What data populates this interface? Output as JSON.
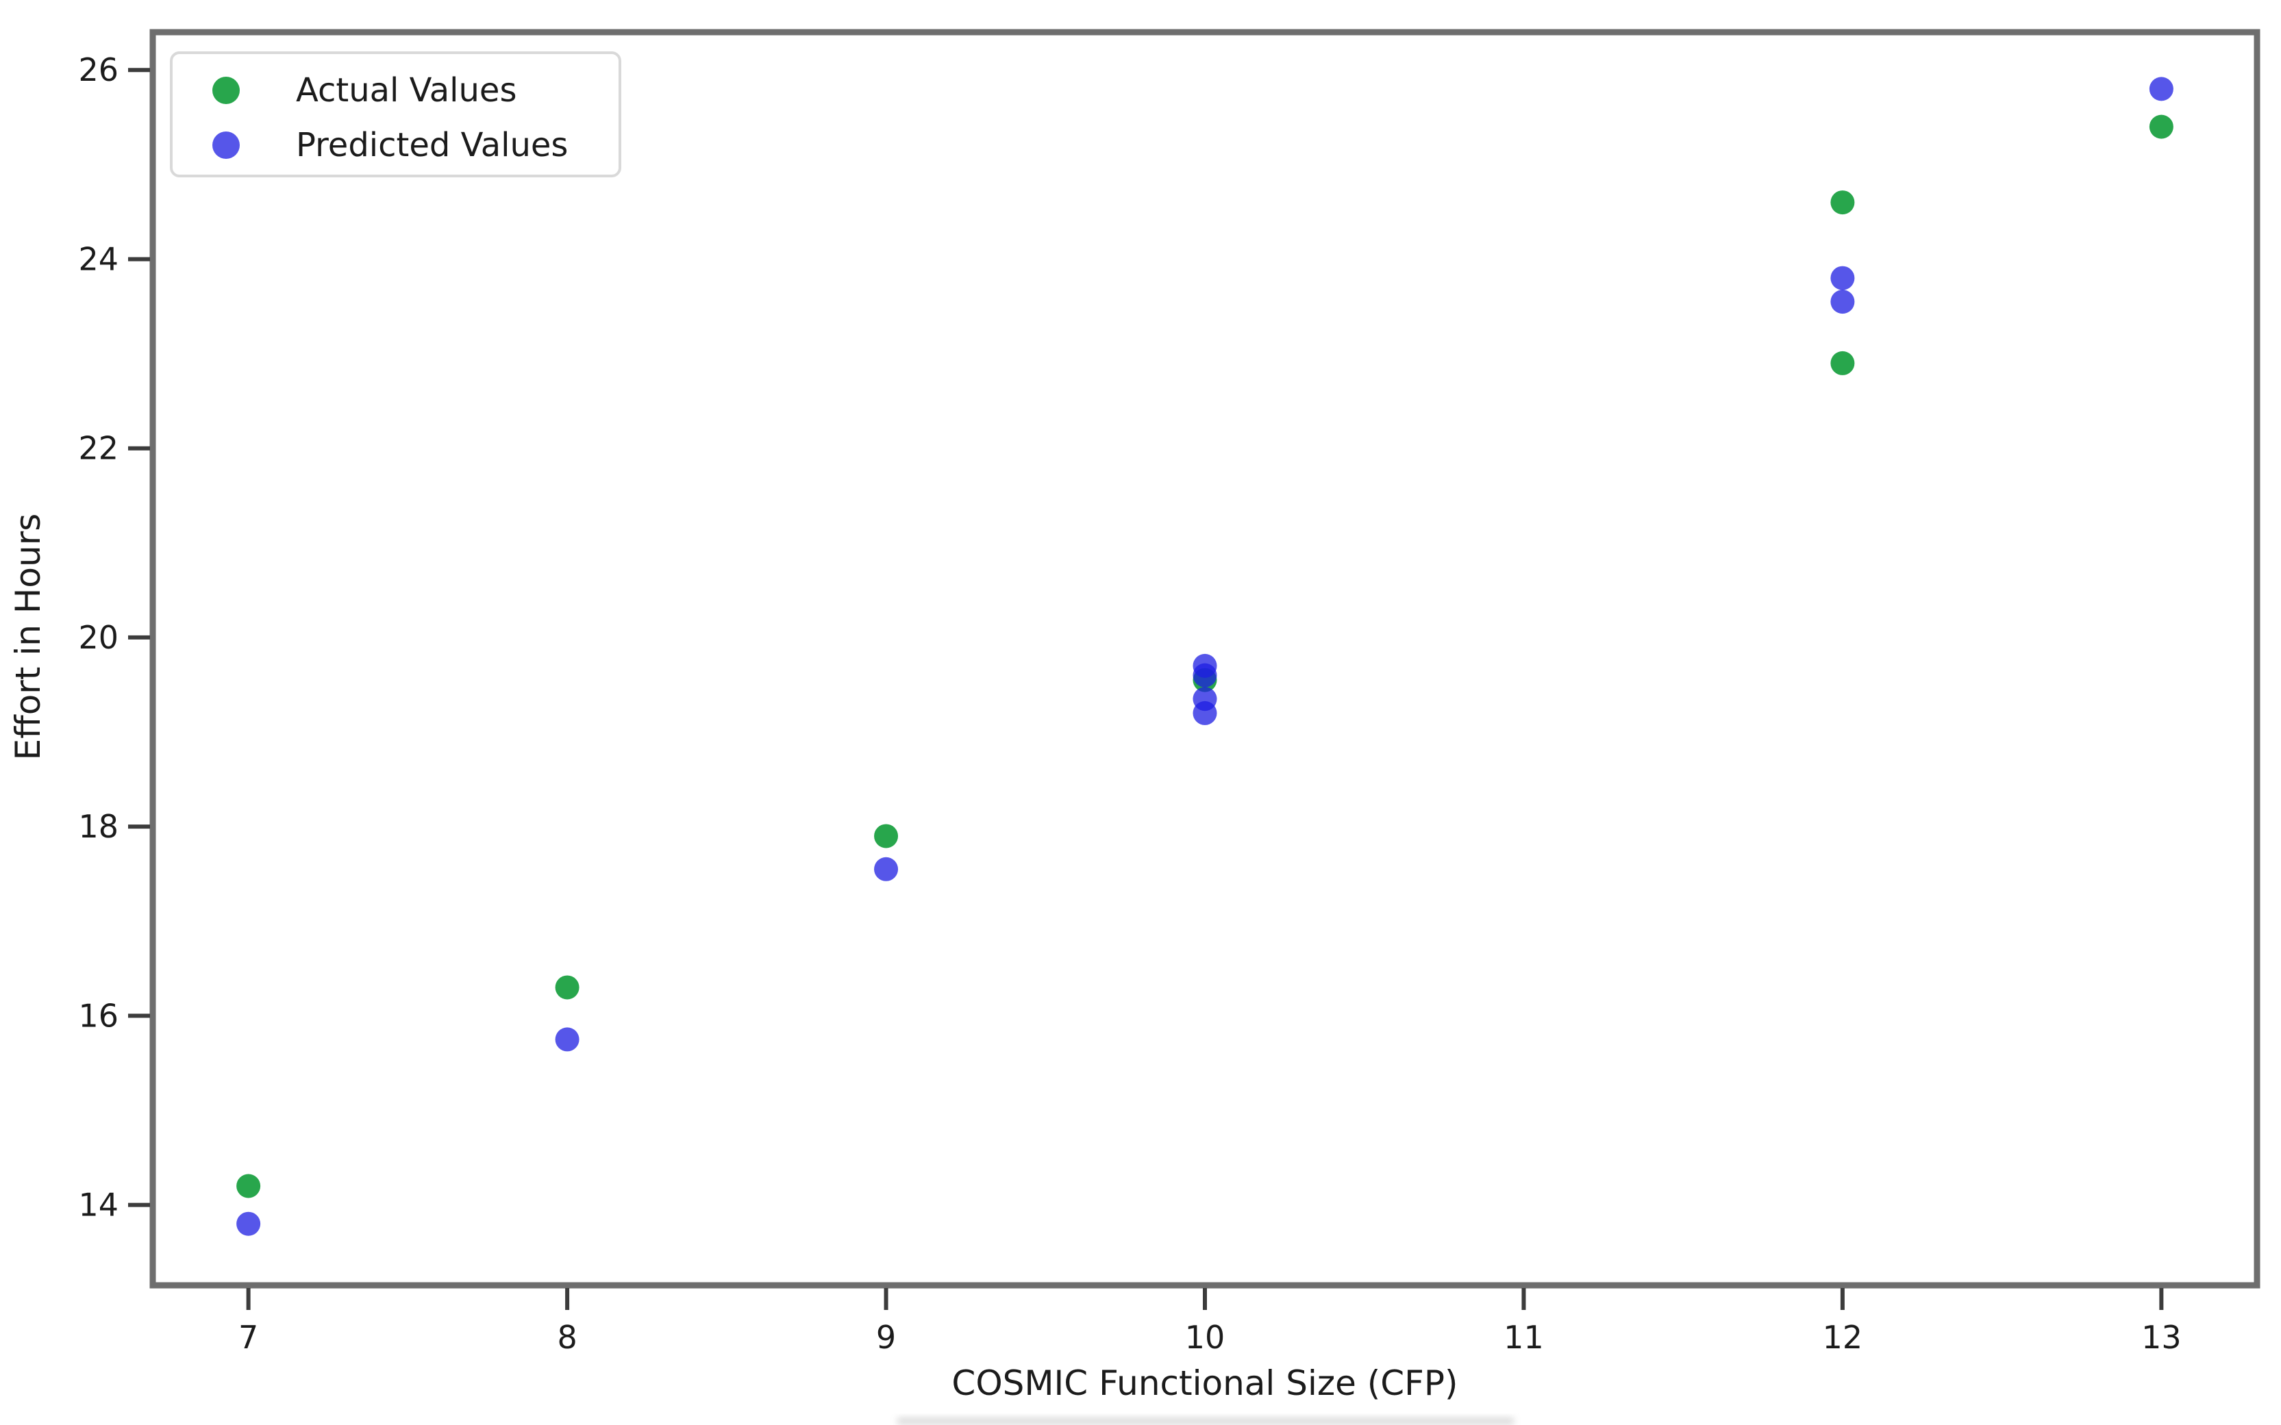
{
  "figure": {
    "background": "#ffffff",
    "axis_color": "#6e6e6e",
    "text_color": "#1b1b1b"
  },
  "chart_data": {
    "type": "scatter",
    "title": "",
    "xlabel": "COSMIC Functional Size (CFP)",
    "ylabel": "Effort in Hours",
    "x_ticks": [
      7,
      8,
      9,
      10,
      11,
      12,
      13
    ],
    "y_ticks": [
      14,
      16,
      18,
      20,
      22,
      24,
      26
    ],
    "xlim": [
      6.7,
      13.3
    ],
    "ylim": [
      13.15,
      26.4
    ],
    "grid": false,
    "legend": {
      "position": "upper left",
      "entries": [
        "Actual Values",
        "Predicted Values"
      ]
    },
    "series": [
      {
        "name": "Actual Values",
        "color": "#119c38",
        "opacity": 0.9,
        "points": [
          [
            7,
            14.2
          ],
          [
            8,
            16.3
          ],
          [
            9,
            17.9
          ],
          [
            10,
            19.55
          ],
          [
            12,
            24.6
          ],
          [
            12,
            22.9
          ],
          [
            13,
            25.4
          ]
        ]
      },
      {
        "name": "Predicted Values",
        "color": "#1e1ee1",
        "opacity": 0.75,
        "points": [
          [
            7,
            13.8
          ],
          [
            8,
            15.75
          ],
          [
            9,
            17.55
          ],
          [
            10,
            19.7
          ],
          [
            10,
            19.6
          ],
          [
            10,
            19.35
          ],
          [
            10,
            19.2
          ],
          [
            12,
            23.8
          ],
          [
            12,
            23.55
          ],
          [
            13,
            25.8
          ]
        ]
      }
    ]
  }
}
